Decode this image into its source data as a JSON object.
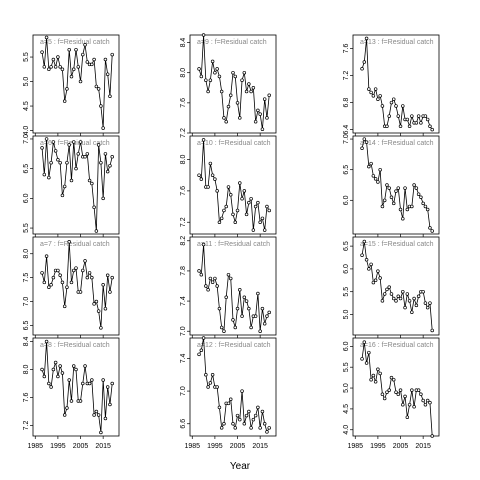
{
  "xlabel": "Year",
  "chart_data": [
    {
      "type": "line",
      "title": "a=5 : f=Residual catch",
      "x": [
        1988,
        1989,
        1990,
        1991,
        1992,
        1993,
        1994,
        1995,
        1996,
        1997,
        1998,
        1999,
        2000,
        2001,
        2002,
        2003,
        2004,
        2005,
        2006,
        2007,
        2008,
        2009,
        2010,
        2011,
        2012,
        2013,
        2014,
        2015,
        2016,
        2017,
        2018,
        2019
      ],
      "values": [
        5.6,
        5.3,
        5.9,
        5.25,
        5.3,
        5.45,
        5.3,
        5.5,
        5.3,
        5.25,
        4.6,
        4.85,
        5.65,
        5.1,
        5.25,
        5.65,
        5.3,
        5.0,
        5.55,
        5.75,
        5.4,
        5.35,
        5.35,
        5.45,
        4.9,
        4.85,
        4.5,
        4.05,
        5.45,
        5.15,
        4.7,
        5.55
      ],
      "xlim": [
        1984,
        2022
      ],
      "xticks": [
        1985,
        1995,
        2005,
        2015
      ],
      "ylim": [
        3.95,
        5.95
      ],
      "yticks": [
        {
          "value": 4,
          "label": "4.0"
        },
        4.5,
        {
          "value": 5,
          "label": "5.0"
        },
        5.5
      ]
    },
    {
      "type": "line",
      "title": "a=6 : f=Residual catch",
      "x": [
        1988,
        1989,
        1990,
        1991,
        1992,
        1993,
        1994,
        1995,
        1996,
        1997,
        1998,
        1999,
        2000,
        2001,
        2002,
        2003,
        2004,
        2005,
        2006,
        2007,
        2008,
        2009,
        2010,
        2011,
        2012,
        2013,
        2014,
        2015,
        2016,
        2017,
        2018,
        2019
      ],
      "values": [
        6.85,
        6.4,
        7.0,
        6.35,
        6.6,
        6.95,
        6.8,
        6.65,
        6.6,
        6.05,
        6.2,
        6.6,
        6.9,
        6.3,
        6.95,
        6.5,
        6.75,
        6.95,
        6.7,
        6.7,
        6.75,
        6.3,
        6.25,
        5.85,
        5.45,
        6.9,
        6.6,
        6.0,
        6.75,
        6.45,
        6.55,
        6.7
      ],
      "xlim": [
        1984,
        2022
      ],
      "xticks": [
        1985,
        1995,
        2005,
        2015
      ],
      "ylim": [
        5.4,
        7.05
      ],
      "yticks": [
        5.5,
        {
          "value": 6,
          "label": "6.0"
        },
        6.5,
        {
          "value": 7,
          "label": "7.0"
        }
      ]
    },
    {
      "type": "line",
      "title": "a=7 : f=Residual catch",
      "x": [
        1988,
        1989,
        1990,
        1991,
        1992,
        1993,
        1994,
        1995,
        1996,
        1997,
        1998,
        1999,
        2000,
        2001,
        2002,
        2003,
        2004,
        2005,
        2006,
        2007,
        2008,
        2009,
        2010,
        2011,
        2012,
        2013,
        2014,
        2015,
        2016,
        2017,
        2018,
        2019
      ],
      "values": [
        7.6,
        7.4,
        7.95,
        7.3,
        7.35,
        7.5,
        7.65,
        7.65,
        7.55,
        7.4,
        6.9,
        7.3,
        8.25,
        7.4,
        7.65,
        7.7,
        7.2,
        7.2,
        7.65,
        7.85,
        7.5,
        7.6,
        7.5,
        6.95,
        7.0,
        6.8,
        6.45,
        7.35,
        6.85,
        7.55,
        7.2,
        7.5
      ],
      "xlim": [
        1984,
        2022
      ],
      "xticks": [
        1985,
        1995,
        2005,
        2015
      ],
      "ylim": [
        6.3,
        8.35
      ],
      "yticks": [
        6.5,
        {
          "value": 7,
          "label": "7.0"
        },
        7.5,
        {
          "value": 8,
          "label": "8.0"
        }
      ]
    },
    {
      "type": "line",
      "title": "a=8 : f=Residual catch",
      "x": [
        1988,
        1989,
        1990,
        1991,
        1992,
        1993,
        1994,
        1995,
        1996,
        1997,
        1998,
        1999,
        2000,
        2001,
        2002,
        2003,
        2004,
        2005,
        2006,
        2007,
        2008,
        2009,
        2010,
        2011,
        2012,
        2013,
        2014,
        2015,
        2016,
        2017,
        2018,
        2019
      ],
      "values": [
        8.0,
        7.9,
        8.4,
        7.8,
        7.75,
        8.0,
        8.1,
        7.9,
        8.05,
        7.95,
        7.35,
        7.45,
        7.85,
        7.55,
        8.05,
        8.0,
        7.55,
        7.55,
        7.8,
        8.05,
        7.8,
        7.8,
        7.85,
        7.35,
        7.4,
        7.35,
        7.1,
        7.85,
        7.3,
        7.75,
        7.5,
        7.8
      ],
      "xlim": [
        1984,
        2022
      ],
      "xticks": [
        1985,
        1995,
        2005,
        2015
      ],
      "ylim": [
        7.05,
        8.45
      ],
      "yticks": [
        7.2,
        7.6,
        {
          "value": 8,
          "label": "8.0"
        },
        8.4
      ]
    },
    {
      "type": "line",
      "title": "a=9 : f=Residual catch",
      "x": [
        1988,
        1989,
        1990,
        1991,
        1992,
        1993,
        1994,
        1995,
        1996,
        1997,
        1998,
        1999,
        2000,
        2001,
        2002,
        2003,
        2004,
        2005,
        2006,
        2007,
        2008,
        2009,
        2010,
        2011,
        2012,
        2013,
        2014,
        2015,
        2016,
        2017,
        2018,
        2019
      ],
      "values": [
        8.05,
        7.95,
        8.5,
        7.9,
        7.75,
        7.9,
        8.15,
        8.0,
        8.05,
        7.95,
        7.75,
        7.4,
        7.35,
        7.55,
        7.7,
        8.0,
        7.95,
        7.6,
        7.4,
        7.9,
        8.0,
        7.75,
        7.85,
        7.75,
        7.8,
        7.35,
        7.5,
        7.45,
        7.25,
        7.65,
        7.4,
        7.7
      ],
      "xlim": [
        1984,
        2022
      ],
      "xticks": [
        1985,
        1995,
        2005,
        2015
      ],
      "ylim": [
        7.2,
        8.5
      ],
      "yticks": [
        7.2,
        7.6,
        {
          "value": 8,
          "label": "8.0"
        },
        8.4
      ]
    },
    {
      "type": "line",
      "title": "a=10 : f=Residual catch",
      "x": [
        1988,
        1989,
        1990,
        1991,
        1992,
        1993,
        1994,
        1995,
        1996,
        1997,
        1998,
        1999,
        2000,
        2001,
        2002,
        2003,
        2004,
        2005,
        2006,
        2007,
        2008,
        2009,
        2010,
        2011,
        2012,
        2013,
        2014,
        2015,
        2016,
        2017,
        2018,
        2019
      ],
      "values": [
        7.8,
        7.75,
        8.25,
        7.65,
        7.65,
        7.95,
        7.8,
        7.75,
        7.6,
        7.2,
        7.25,
        7.35,
        7.4,
        7.65,
        7.55,
        7.3,
        7.2,
        7.35,
        7.7,
        7.5,
        7.6,
        7.3,
        7.45,
        7.5,
        7.1,
        7.4,
        7.45,
        7.2,
        7.25,
        7.1,
        7.4,
        7.35
      ],
      "xlim": [
        1984,
        2022
      ],
      "xticks": [
        1985,
        1995,
        2005,
        2015
      ],
      "ylim": [
        7.05,
        8.3
      ],
      "yticks": [
        7.2,
        7.6,
        {
          "value": 8,
          "label": "8.0"
        }
      ]
    },
    {
      "type": "line",
      "title": "a=11 : f=Residual catch",
      "x": [
        1988,
        1989,
        1990,
        1991,
        1992,
        1993,
        1994,
        1995,
        1996,
        1997,
        1998,
        1999,
        2000,
        2001,
        2002,
        2003,
        2004,
        2005,
        2006,
        2007,
        2008,
        2009,
        2010,
        2011,
        2012,
        2013,
        2014,
        2015,
        2016,
        2017,
        2018,
        2019
      ],
      "values": [
        7.8,
        7.75,
        8.15,
        7.6,
        7.55,
        7.7,
        7.65,
        7.7,
        7.6,
        7.3,
        7.05,
        7.0,
        7.45,
        7.75,
        7.7,
        7.15,
        7.05,
        7.3,
        7.55,
        7.2,
        7.45,
        7.4,
        7.3,
        7.05,
        7.2,
        7.2,
        7.5,
        7.0,
        7.3,
        7.1,
        7.2,
        7.25
      ],
      "xlim": [
        1984,
        2022
      ],
      "xticks": [
        1985,
        1995,
        2005,
        2015
      ],
      "ylim": [
        6.95,
        8.25
      ],
      "yticks": [
        {
          "value": 7,
          "label": "7.0"
        },
        7.4,
        7.8,
        8.2
      ]
    },
    {
      "type": "line",
      "title": "a=12 : f=Residual catch",
      "x": [
        1988,
        1989,
        1990,
        1991,
        1992,
        1993,
        1994,
        1995,
        1996,
        1997,
        1998,
        1999,
        2000,
        2001,
        2002,
        2003,
        2004,
        2005,
        2006,
        2007,
        2008,
        2009,
        2010,
        2011,
        2012,
        2013,
        2014,
        2015,
        2016,
        2017,
        2018,
        2019
      ],
      "values": [
        7.45,
        7.5,
        7.65,
        7.2,
        7.05,
        7.1,
        7.2,
        7.05,
        7.05,
        6.8,
        6.55,
        6.6,
        6.85,
        6.85,
        6.9,
        6.6,
        6.55,
        6.7,
        6.65,
        7.0,
        6.6,
        6.7,
        6.75,
        6.55,
        6.65,
        6.7,
        6.8,
        6.55,
        6.75,
        6.6,
        6.5,
        6.55
      ],
      "xlim": [
        1984,
        2022
      ],
      "xticks": [
        1985,
        1995,
        2005,
        2015
      ],
      "ylim": [
        6.45,
        7.65
      ],
      "yticks": [
        6.6,
        {
          "value": 7,
          "label": "7.0"
        },
        7.4
      ]
    },
    {
      "type": "line",
      "title": "a=13 : f=Residual catch",
      "x": [
        1988,
        1989,
        1990,
        1991,
        1992,
        1993,
        1994,
        1995,
        1996,
        1997,
        1998,
        1999,
        2000,
        2001,
        2002,
        2003,
        2004,
        2005,
        2006,
        2007,
        2008,
        2009,
        2010,
        2011,
        2012,
        2013,
        2014,
        2015,
        2016,
        2017,
        2018,
        2019
      ],
      "values": [
        7.3,
        7.4,
        7.75,
        7.0,
        6.95,
        6.9,
        7.0,
        6.85,
        6.9,
        6.75,
        6.45,
        6.45,
        6.6,
        6.8,
        6.85,
        6.75,
        6.6,
        6.45,
        6.75,
        6.55,
        6.55,
        6.45,
        6.6,
        6.5,
        6.5,
        6.6,
        6.5,
        6.6,
        6.6,
        6.55,
        6.45,
        6.4
      ],
      "xlim": [
        1984,
        2022
      ],
      "xticks": [
        1985,
        1995,
        2005,
        2015
      ],
      "ylim": [
        6.35,
        7.8
      ],
      "yticks": [
        6.4,
        6.8,
        7.2,
        7.6
      ]
    },
    {
      "type": "line",
      "title": "a=14 : f=Residual catch",
      "x": [
        1988,
        1989,
        1990,
        1991,
        1992,
        1993,
        1994,
        1995,
        1996,
        1997,
        1998,
        1999,
        2000,
        2001,
        2002,
        2003,
        2004,
        2005,
        2006,
        2007,
        2008,
        2009,
        2010,
        2011,
        2012,
        2013,
        2014,
        2015,
        2016,
        2017,
        2018,
        2019
      ],
      "values": [
        6.85,
        7.0,
        6.95,
        6.55,
        6.6,
        6.4,
        6.35,
        6.3,
        6.5,
        5.9,
        6.0,
        6.25,
        6.2,
        6.05,
        5.95,
        6.15,
        6.2,
        5.85,
        5.7,
        6.2,
        5.85,
        5.9,
        5.9,
        6.25,
        6.2,
        6.1,
        6.05,
        5.95,
        5.9,
        5.85,
        5.55,
        5.5
      ],
      "xlim": [
        1984,
        2022
      ],
      "xticks": [
        1985,
        1995,
        2005,
        2015
      ],
      "ylim": [
        5.45,
        7.05
      ],
      "yticks": [
        {
          "value": 6,
          "label": "6.0"
        },
        6.5,
        {
          "value": 7,
          "label": "7.0"
        }
      ]
    },
    {
      "type": "line",
      "title": "a=15 : f=Residual catch",
      "x": [
        1988,
        1989,
        1990,
        1991,
        1992,
        1993,
        1994,
        1995,
        1996,
        1997,
        1998,
        1999,
        2000,
        2001,
        2002,
        2003,
        2004,
        2005,
        2006,
        2007,
        2008,
        2009,
        2010,
        2011,
        2012,
        2013,
        2014,
        2015,
        2016,
        2017,
        2018,
        2019
      ],
      "values": [
        6.3,
        6.6,
        6.2,
        6.0,
        6.1,
        5.7,
        5.75,
        5.95,
        5.8,
        5.3,
        5.45,
        5.55,
        5.6,
        5.45,
        5.35,
        5.3,
        5.4,
        5.35,
        5.5,
        5.15,
        5.45,
        5.3,
        5.05,
        5.35,
        5.2,
        5.4,
        5.5,
        5.5,
        5.25,
        5.15,
        5.25,
        4.65
      ],
      "xlim": [
        1984,
        2022
      ],
      "xticks": [
        1985,
        1995,
        2005,
        2015
      ],
      "ylim": [
        4.55,
        6.7
      ],
      "yticks": [
        {
          "value": 5,
          "label": "5.0"
        },
        5.5,
        {
          "value": 6,
          "label": "6.0"
        },
        6.5
      ]
    },
    {
      "type": "line",
      "title": "a=16 : f=Residual catch",
      "x": [
        1988,
        1989,
        1990,
        1991,
        1992,
        1993,
        1994,
        1995,
        1996,
        1997,
        1998,
        1999,
        2000,
        2001,
        2002,
        2003,
        2004,
        2005,
        2006,
        2007,
        2008,
        2009,
        2010,
        2011,
        2012,
        2013,
        2014,
        2015,
        2016,
        2017,
        2018,
        2019
      ],
      "values": [
        5.7,
        6.1,
        5.6,
        5.85,
        5.2,
        5.3,
        5.15,
        5.45,
        5.35,
        4.85,
        4.75,
        4.9,
        4.95,
        5.25,
        5.2,
        4.9,
        4.85,
        4.95,
        4.6,
        4.8,
        4.3,
        4.6,
        4.95,
        4.55,
        4.95,
        4.95,
        4.85,
        4.7,
        4.6,
        4.7,
        4.65,
        3.85
      ],
      "xlim": [
        1984,
        2022
      ],
      "xticks": [
        1985,
        1995,
        2005,
        2015
      ],
      "ylim": [
        3.85,
        6.2
      ],
      "yticks": [
        {
          "value": 4,
          "label": "4.0"
        },
        4.5,
        {
          "value": 5,
          "label": "5.0"
        },
        5.5,
        {
          "value": 6,
          "label": "6.0"
        }
      ]
    }
  ]
}
